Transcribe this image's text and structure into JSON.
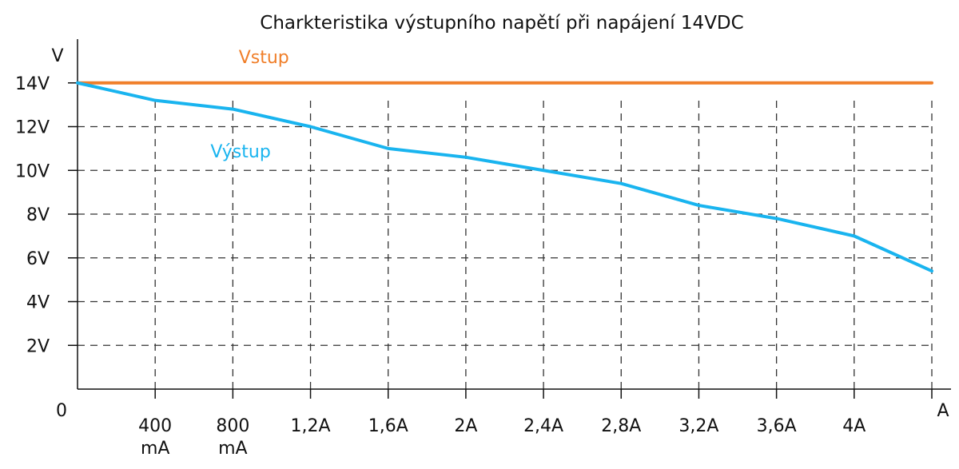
{
  "chart_data": {
    "type": "line",
    "title": "Charkteristika výstupního napětí při napájení 14VDC",
    "ylabel": "V",
    "xlabel": "A",
    "origin_label": "0",
    "xlim": [
      0,
      4.4
    ],
    "ylim": [
      0,
      16
    ],
    "grid": true,
    "x_ticks": [
      {
        "value": 0.4,
        "lines": [
          "400",
          "mA"
        ]
      },
      {
        "value": 0.8,
        "lines": [
          "800",
          "mA"
        ]
      },
      {
        "value": 1.2,
        "lines": [
          "1,2A"
        ]
      },
      {
        "value": 1.6,
        "lines": [
          "1,6A"
        ]
      },
      {
        "value": 2.0,
        "lines": [
          "2A"
        ]
      },
      {
        "value": 2.4,
        "lines": [
          "2,4A"
        ]
      },
      {
        "value": 2.8,
        "lines": [
          "2,8A"
        ]
      },
      {
        "value": 3.2,
        "lines": [
          "3,2A"
        ]
      },
      {
        "value": 3.6,
        "lines": [
          "3,6A"
        ]
      },
      {
        "value": 4.0,
        "lines": [
          "4A"
        ]
      },
      {
        "value": 4.4,
        "lines": []
      }
    ],
    "y_ticks": [
      {
        "value": 2,
        "label": "2V"
      },
      {
        "value": 4,
        "label": "4V"
      },
      {
        "value": 6,
        "label": "6V"
      },
      {
        "value": 8,
        "label": "8V"
      },
      {
        "value": 10,
        "label": "10V"
      },
      {
        "value": 12,
        "label": "12V"
      },
      {
        "value": 14,
        "label": "14V"
      }
    ],
    "series": [
      {
        "name": "Vstup",
        "color": "#f07f2a",
        "x": [
          0,
          0.4,
          0.8,
          1.2,
          1.6,
          2.0,
          2.4,
          2.8,
          3.2,
          3.6,
          4.0,
          4.4
        ],
        "y": [
          14,
          14,
          14,
          14,
          14,
          14,
          14,
          14,
          14,
          14,
          14,
          14
        ],
        "label_at": [
          0.96,
          14.9
        ]
      },
      {
        "name": "Výstup",
        "color": "#19b4ef",
        "x": [
          0,
          0.4,
          0.8,
          1.2,
          1.6,
          2.0,
          2.4,
          2.8,
          3.2,
          3.6,
          4.0,
          4.4
        ],
        "y": [
          14,
          13.2,
          12.8,
          12,
          11,
          10.6,
          10,
          9.4,
          8.4,
          7.8,
          7,
          5.4
        ],
        "label_at": [
          0.84,
          10.6
        ]
      }
    ]
  }
}
